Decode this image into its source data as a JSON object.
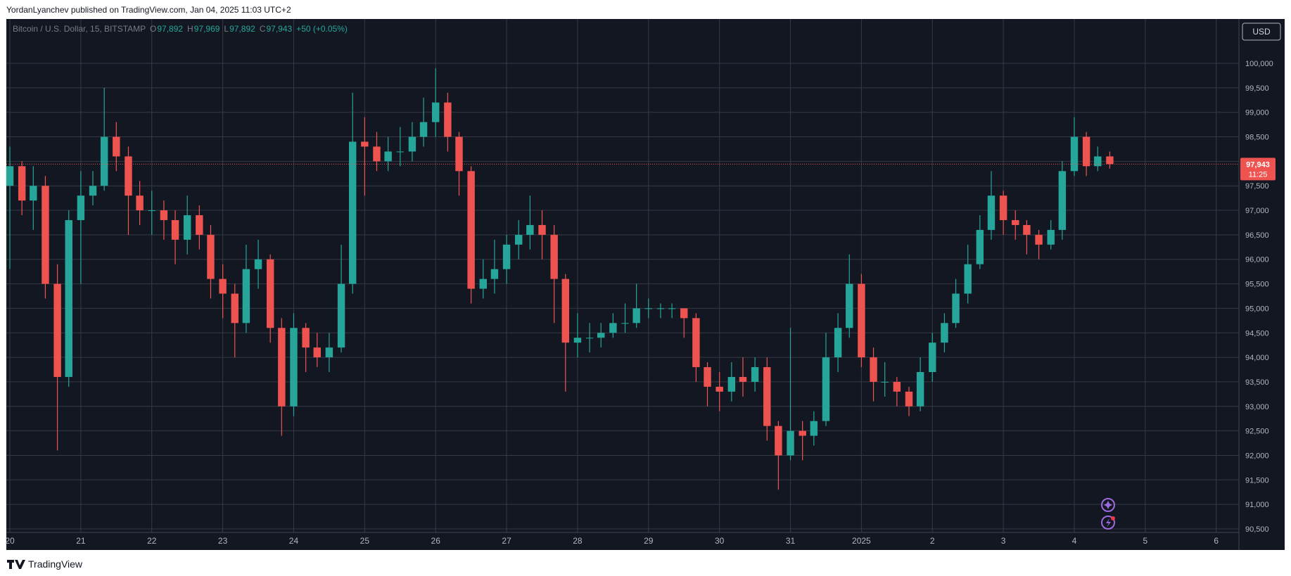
{
  "chart_data": {
    "type": "candlestick",
    "published": "YordanLyanchev published on TradingView.com, Jan 04, 2025 11:03 UTC+2",
    "symbol": "Bitcoin / U.S. Dollar, 15, BITSTAMP",
    "ohlc_legend": [
      {
        "label": "O",
        "value": "97,892"
      },
      {
        "label": "H",
        "value": "97,969"
      },
      {
        "label": "L",
        "value": "97,892"
      },
      {
        "label": "C",
        "value": "97,943"
      }
    ],
    "change": "+50 (+0.05%)",
    "currency": "USD",
    "last_price_label": "97,943",
    "countdown": "11:25",
    "brand": "TradingView",
    "up_color": "#26a69a",
    "down_color": "#ef5350",
    "grid": true,
    "x": [
      0,
      0.17,
      0.33,
      0.5,
      0.67,
      0.83,
      1,
      1.17,
      1.33,
      1.5,
      1.67,
      1.83,
      2,
      2.17,
      2.33,
      2.5,
      2.67,
      2.83,
      3,
      3.17,
      3.33,
      3.5,
      3.67,
      3.83,
      4,
      4.17,
      4.33,
      4.5,
      4.67,
      4.83,
      5,
      5.17,
      5.33,
      5.5,
      5.67,
      5.83,
      6,
      6.17,
      6.33,
      6.5,
      6.67,
      6.83,
      7,
      7.17,
      7.33,
      7.5,
      7.67,
      7.83,
      8,
      8.17,
      8.33,
      8.5,
      8.67,
      8.83,
      9,
      9.17,
      9.33,
      9.5,
      9.67,
      9.83,
      10,
      10.17,
      10.33,
      10.5,
      10.67,
      10.83,
      11,
      11.17,
      11.33,
      11.5,
      11.67,
      11.83,
      12,
      12.17,
      12.33,
      12.5,
      12.67,
      12.83,
      13,
      13.17,
      13.33,
      13.5,
      13.67,
      13.83,
      14,
      14.17,
      14.33,
      14.5,
      14.67,
      14.83,
      15,
      15.17,
      15.33,
      15.5
    ],
    "open": [
      97500,
      97900,
      97200,
      97500,
      95500,
      93600,
      96800,
      97300,
      97500,
      98500,
      98100,
      97300,
      97000,
      97000,
      96800,
      96400,
      96900,
      96500,
      95600,
      95300,
      94700,
      95800,
      96000,
      94600,
      93000,
      94600,
      94200,
      94000,
      94200,
      95500,
      98400,
      98300,
      98000,
      98200,
      98200,
      98500,
      98800,
      99200,
      98500,
      97800,
      95400,
      95600,
      95800,
      96300,
      96500,
      96700,
      96500,
      95600,
      94300,
      94400,
      94400,
      94500,
      94700,
      94700,
      95000,
      95000,
      95000,
      95000,
      94800,
      93800,
      93400,
      93300,
      93600,
      93500,
      93800,
      92600,
      92000,
      92500,
      92400,
      92700,
      94000,
      94600,
      95500,
      94000,
      93500,
      93500,
      93300,
      93000,
      93700,
      94300,
      94700,
      95300,
      95900,
      96600,
      97300,
      96800,
      96700,
      96500,
      96300,
      96600,
      97800,
      98500,
      97900,
      98100
    ],
    "high": [
      98300,
      98000,
      97900,
      97700,
      95900,
      97000,
      97800,
      97800,
      99500,
      98800,
      98300,
      97600,
      97400,
      97200,
      97000,
      97300,
      97100,
      96700,
      95900,
      95500,
      96300,
      96400,
      96100,
      94800,
      94900,
      94700,
      94500,
      94500,
      96300,
      99400,
      98900,
      98600,
      98500,
      98700,
      98800,
      99300,
      99900,
      99400,
      98600,
      97900,
      96000,
      96400,
      96500,
      96800,
      97300,
      97000,
      96700,
      95700,
      94900,
      94700,
      94700,
      94900,
      95100,
      95500,
      95200,
      95100,
      95100,
      95000,
      94900,
      93900,
      93700,
      93900,
      94000,
      94000,
      94000,
      92700,
      94600,
      92700,
      92900,
      94500,
      94900,
      96100,
      95700,
      94200,
      93900,
      93600,
      93400,
      94000,
      94500,
      94900,
      95600,
      96300,
      96900,
      97800,
      97400,
      97000,
      96800,
      96600,
      96800,
      98000,
      98900,
      98600,
      98300,
      98200
    ],
    "low": [
      95800,
      96900,
      96600,
      95200,
      92100,
      93400,
      95500,
      97100,
      97400,
      97800,
      96500,
      96700,
      96500,
      96400,
      95900,
      96100,
      96200,
      95200,
      94800,
      94000,
      94500,
      95400,
      94300,
      92400,
      92800,
      93700,
      93800,
      93700,
      94100,
      95300,
      97300,
      97800,
      97800,
      97900,
      98000,
      98300,
      98500,
      98200,
      97300,
      95100,
      95200,
      95300,
      95500,
      96000,
      96200,
      96000,
      94700,
      93300,
      94000,
      94100,
      94200,
      94400,
      94500,
      94600,
      94800,
      94800,
      94800,
      94400,
      93500,
      93000,
      92900,
      93100,
      93200,
      93300,
      92300,
      91300,
      91900,
      91900,
      92200,
      92600,
      93700,
      94400,
      93800,
      93100,
      93200,
      93000,
      92800,
      92900,
      93500,
      94100,
      94600,
      95100,
      95800,
      96400,
      96500,
      96400,
      96100,
      96000,
      96200,
      96400,
      97700,
      97700,
      97800,
      97850
    ],
    "close": [
      97900,
      97200,
      97500,
      95500,
      93600,
      96800,
      97300,
      97500,
      98500,
      98100,
      97300,
      97000,
      97000,
      96800,
      96400,
      96900,
      96500,
      95600,
      95300,
      94700,
      95800,
      96000,
      94600,
      93000,
      94600,
      94200,
      94000,
      94200,
      95500,
      98400,
      98300,
      98000,
      98200,
      98200,
      98500,
      98800,
      99200,
      98500,
      97800,
      95400,
      95600,
      95800,
      96300,
      96500,
      96700,
      96500,
      95600,
      94300,
      94400,
      94400,
      94500,
      94700,
      94700,
      95000,
      95000,
      95000,
      95000,
      94800,
      93800,
      93400,
      93300,
      93600,
      93500,
      93800,
      92600,
      92000,
      92500,
      92400,
      92700,
      94000,
      94600,
      95500,
      94000,
      93500,
      93500,
      93300,
      93000,
      93700,
      94300,
      94700,
      95300,
      95900,
      96600,
      97300,
      96800,
      96700,
      96500,
      96300,
      96600,
      97800,
      98500,
      97900,
      98100,
      97943
    ],
    "xlim": [
      -0.02,
      17.32
    ],
    "xticks": [
      {
        "value": 0,
        "label": "20"
      },
      {
        "value": 1,
        "label": "21"
      },
      {
        "value": 2,
        "label": "22"
      },
      {
        "value": 3,
        "label": "23"
      },
      {
        "value": 4,
        "label": "24"
      },
      {
        "value": 5,
        "label": "25"
      },
      {
        "value": 6,
        "label": "26"
      },
      {
        "value": 7,
        "label": "27"
      },
      {
        "value": 8,
        "label": "28"
      },
      {
        "value": 9,
        "label": "29"
      },
      {
        "value": 10,
        "label": "30"
      },
      {
        "value": 11,
        "label": "31"
      },
      {
        "value": 12,
        "label": "2025"
      },
      {
        "value": 13,
        "label": "2"
      },
      {
        "value": 14,
        "label": "3"
      },
      {
        "value": 15,
        "label": "4"
      },
      {
        "value": 16,
        "label": "5"
      },
      {
        "value": 17,
        "label": "6"
      }
    ],
    "ylim": [
      90428,
      100904
    ],
    "yticks": [
      {
        "value": 90500,
        "label": "90,500"
      },
      {
        "value": 91000,
        "label": "91,000"
      },
      {
        "value": 91500,
        "label": "91,500"
      },
      {
        "value": 92000,
        "label": "92,000"
      },
      {
        "value": 92500,
        "label": "92,500"
      },
      {
        "value": 93000,
        "label": "93,000"
      },
      {
        "value": 93500,
        "label": "93,500"
      },
      {
        "value": 94000,
        "label": "94,000"
      },
      {
        "value": 94500,
        "label": "94,500"
      },
      {
        "value": 95000,
        "label": "95,000"
      },
      {
        "value": 95500,
        "label": "95,500"
      },
      {
        "value": 96000,
        "label": "96,000"
      },
      {
        "value": 96500,
        "label": "96,500"
      },
      {
        "value": 97000,
        "label": "97,000"
      },
      {
        "value": 97500,
        "label": "97,500"
      },
      {
        "value": 98000,
        "label": "98,000"
      },
      {
        "value": 98500,
        "label": "98,500"
      },
      {
        "value": 99000,
        "label": "99,000"
      },
      {
        "value": 99500,
        "label": "99,500"
      },
      {
        "value": 100000,
        "label": "100,000"
      }
    ]
  }
}
